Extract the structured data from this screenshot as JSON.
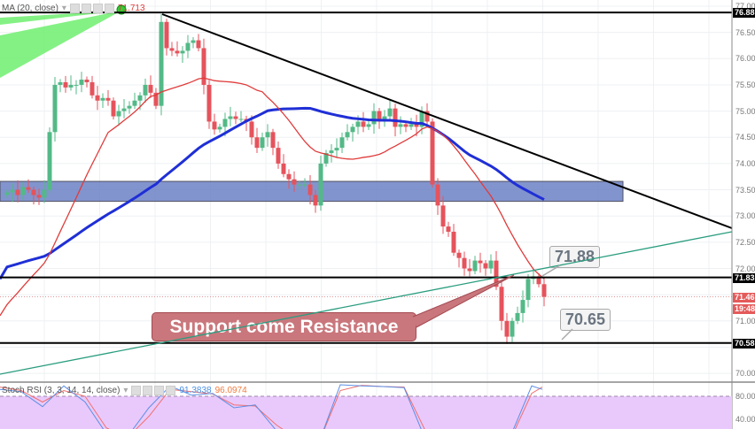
{
  "main_legend": {
    "ma_label": "MA (20, close)",
    "ma_value": "71.713",
    "ma_color": "#e03b3b"
  },
  "stoch_legend": {
    "label": "Stoch RSI (3, 3, 14, 14, close)",
    "k_value": "91.3838",
    "d_value": "96.0974",
    "k_color": "#4a90e2",
    "d_color": "#f07b3f"
  },
  "price_axis": {
    "ticks": [
      "77.00",
      "76.50",
      "76.00",
      "75.50",
      "75.00",
      "74.50",
      "74.00",
      "73.50",
      "73.00",
      "72.50",
      "72.00",
      "71.00",
      "70.00"
    ],
    "tags": [
      {
        "value": "76.88",
        "price": 76.88,
        "color": "#000000"
      },
      {
        "value": "71.83",
        "price": 71.83,
        "color": "#000000"
      },
      {
        "value": "71.46",
        "price": 71.46,
        "color": "#e55a5a"
      },
      {
        "value": "19:48",
        "price": 71.23,
        "color": "#e55a5a"
      },
      {
        "value": "70.58",
        "price": 70.58,
        "color": "#000000"
      }
    ]
  },
  "stoch_axis": {
    "ticks": [
      "80.000",
      "40.000"
    ]
  },
  "callouts": {
    "upper": "71.88",
    "lower": "70.65"
  },
  "annotation": "Support come Resistance",
  "chart_data": {
    "type": "candlestick",
    "yrange": [
      69.8,
      77.1
    ],
    "up_color": "#53b987",
    "down_color": "#e5535c",
    "closes": [
      73.45,
      73.5,
      73.4,
      73.55,
      73.5,
      73.4,
      73.35,
      73.5,
      74.6,
      75.5,
      75.55,
      75.45,
      75.5,
      75.5,
      75.6,
      75.55,
      75.3,
      75.2,
      75.25,
      75.2,
      74.9,
      75.0,
      75.05,
      75.1,
      75.2,
      75.3,
      75.5,
      75.35,
      75.1,
      76.7,
      76.2,
      76.15,
      76.1,
      76.15,
      76.3,
      76.35,
      76.2,
      75.5,
      74.8,
      74.65,
      74.7,
      74.85,
      74.9,
      74.85,
      74.85,
      74.8,
      74.5,
      74.3,
      74.5,
      74.6,
      74.3,
      74.0,
      73.8,
      73.7,
      73.6,
      73.6,
      73.6,
      73.4,
      73.2,
      74.0,
      74.2,
      74.25,
      74.3,
      74.5,
      74.6,
      74.7,
      74.8,
      74.7,
      74.75,
      75.0,
      74.8,
      74.9,
      75.05,
      74.7,
      74.75,
      74.7,
      74.75,
      74.7,
      75.0,
      74.8,
      73.6,
      73.2,
      72.8,
      72.7,
      72.3,
      72.2,
      72.0,
      71.95,
      72.15,
      72.1,
      72.0,
      72.15,
      71.65,
      71.0,
      70.7,
      71.0,
      71.15,
      71.4,
      71.8,
      71.85,
      71.7,
      71.46
    ],
    "first_open": 73.4,
    "ma20": {
      "period": 20,
      "seed": 71.2,
      "color": "#e03b3b"
    },
    "ma50": {
      "period": 50,
      "seed": 72.0,
      "color": "#1f2fd6"
    },
    "horizontal_levels": [
      76.88,
      71.83,
      70.58
    ],
    "current_price": 71.46,
    "zone": {
      "top": 73.66,
      "bottom": 73.28,
      "color": "#6d82c6"
    },
    "stoch_k": [
      92,
      88,
      62,
      98,
      70,
      15,
      10,
      60,
      98,
      82,
      85,
      60,
      65,
      20,
      0,
      0,
      100,
      98,
      97,
      95,
      5,
      0,
      10,
      0,
      10,
      98,
      92
    ],
    "stoch_d": [
      96,
      90,
      70,
      90,
      80,
      25,
      8,
      45,
      92,
      88,
      84,
      65,
      63,
      30,
      5,
      0,
      90,
      99,
      97,
      96,
      20,
      0,
      6,
      3,
      5,
      85,
      96
    ],
    "stoch_bands": [
      80,
      20
    ]
  }
}
